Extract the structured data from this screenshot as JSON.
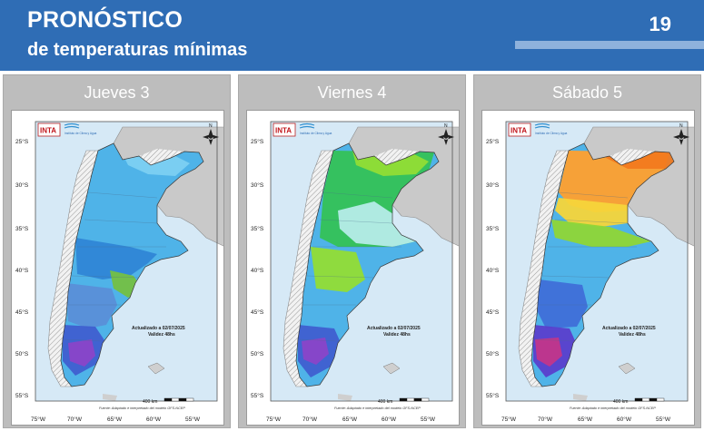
{
  "header": {
    "title": "PRONÓSTICO",
    "subtitle": "de temperaturas mínimas",
    "page_number": "19"
  },
  "panels": [
    {
      "day": "Jueves 3",
      "scheme": "thursday"
    },
    {
      "day": "Viernes 4",
      "scheme": "friday"
    },
    {
      "day": "Sábado 5",
      "scheme": "saturday"
    }
  ],
  "map": {
    "logo": "INTA",
    "institute": "Instituto de Clima y Agua",
    "north": "N",
    "updated": "Actualizado a 02/07/2025",
    "validity": "Validez 48hs",
    "source": "Fuente: Adaptado e interpretado del modelo GFS-NCEP",
    "scale": "400 km",
    "lat_labels": [
      "25°S",
      "30°S",
      "35°S",
      "40°S",
      "45°S",
      "50°S",
      "55°S"
    ],
    "lon_labels": [
      "75°W",
      "70°W",
      "65°W",
      "60°W",
      "55°W"
    ]
  },
  "colors": {
    "header": "#2f6db5",
    "panel": "#bdbdbd",
    "ocean": "#d6e9f6",
    "land_gray": "#c9c9c9"
  }
}
